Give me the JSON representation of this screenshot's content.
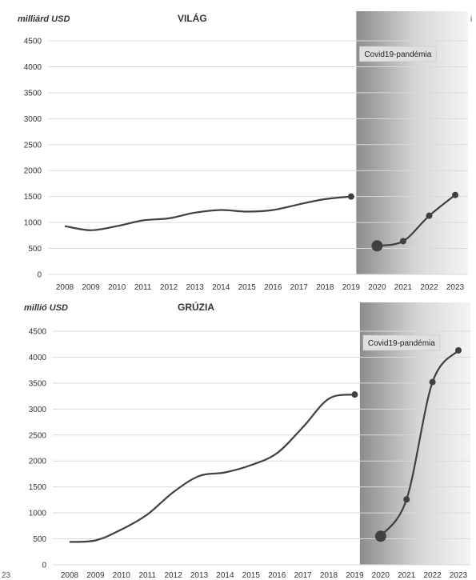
{
  "chart_data": [
    {
      "type": "line",
      "title": "VILÁG",
      "ylabel": "milliárd USD",
      "ylim": [
        0,
        4500
      ],
      "yticks": [
        0,
        500,
        1000,
        1500,
        2000,
        2500,
        3000,
        3500,
        4000,
        4500
      ],
      "categories": [
        "2008",
        "2009",
        "2010",
        "2011",
        "2012",
        "2013",
        "2014",
        "2015",
        "2016",
        "2017",
        "2018",
        "2019",
        "2020",
        "2021",
        "2022",
        "2023"
      ],
      "series": [
        {
          "values": [
            930,
            850,
            930,
            1040,
            1080,
            1190,
            1240,
            1210,
            1240,
            1350,
            1450,
            1500,
            null,
            null,
            null,
            null
          ]
        },
        {
          "values": [
            null,
            null,
            null,
            null,
            null,
            null,
            null,
            null,
            null,
            null,
            null,
            null,
            550,
            640,
            1130,
            1530
          ]
        }
      ],
      "shaded_region": {
        "from": "2020",
        "to": "2023",
        "label": "Covid19-pandémia"
      },
      "grid": true
    },
    {
      "type": "line",
      "title": "GRÚZIA",
      "ylabel": "millió USD",
      "ylim": [
        0,
        4500
      ],
      "yticks": [
        0,
        500,
        1000,
        1500,
        2000,
        2500,
        3000,
        3500,
        4000,
        4500
      ],
      "categories": [
        "2008",
        "2009",
        "2010",
        "2011",
        "2012",
        "2013",
        "2014",
        "2015",
        "2016",
        "2017",
        "2018",
        "2019",
        "2020",
        "2021",
        "2022",
        "2023"
      ],
      "series": [
        {
          "values": [
            440,
            470,
            680,
            970,
            1400,
            1710,
            1780,
            1920,
            2150,
            2650,
            3200,
            3280,
            null,
            null,
            null,
            null
          ]
        },
        {
          "values": [
            null,
            null,
            null,
            null,
            null,
            null,
            null,
            null,
            null,
            null,
            null,
            null,
            550,
            1260,
            3520,
            4130
          ]
        }
      ],
      "shaded_region": {
        "from": "2020",
        "to": "2023",
        "label": "Covid19-pandémia"
      },
      "grid": true
    }
  ],
  "fragments": {
    "right_edge_top": "i",
    "left_edge_bottom": "23"
  },
  "colors": {
    "line": "#404040",
    "grid": "#d9d9d9",
    "shade_light": "#f4f4f4",
    "shade_dark": "#8c8c8c",
    "label_box": "#e0e0e0"
  }
}
